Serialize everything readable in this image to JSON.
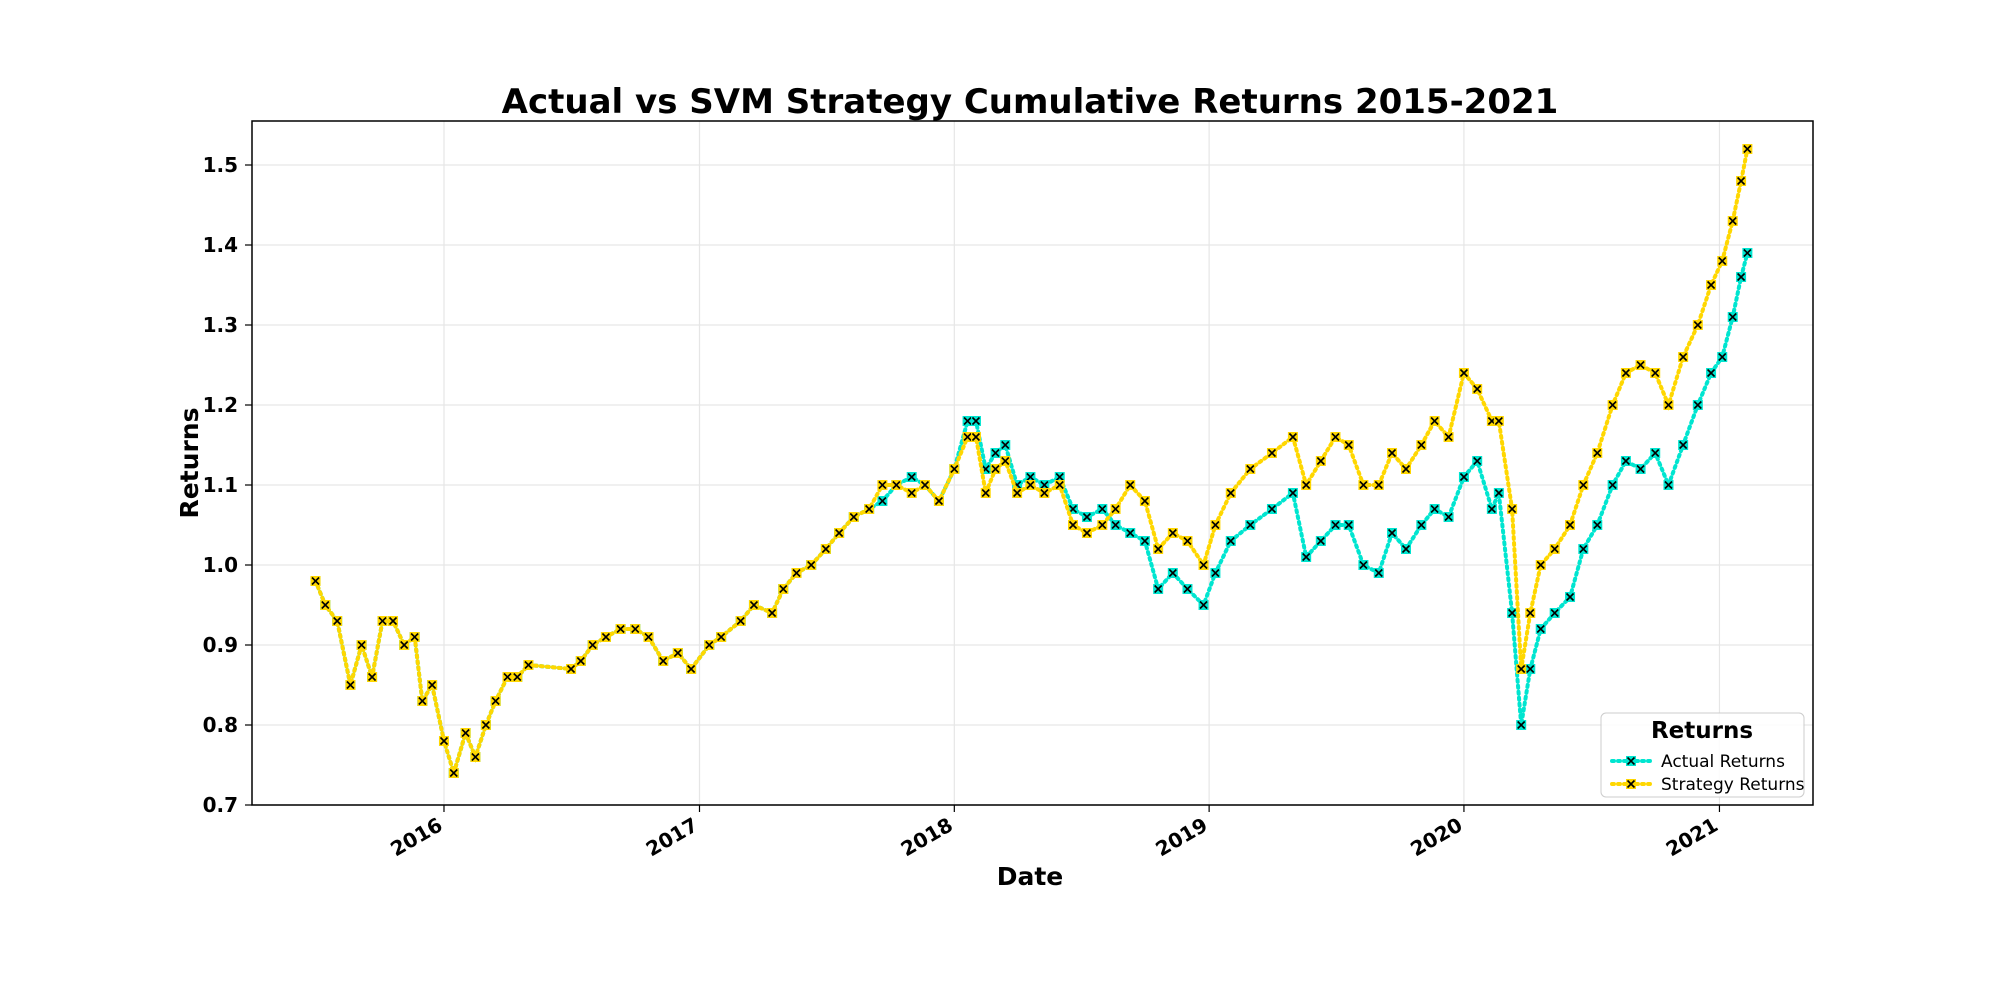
{
  "chart_data": {
    "type": "line",
    "title": "Actual vs SVM Strategy Cumulative Returns 2015-2021",
    "xlabel": "Date",
    "ylabel": "Returns",
    "xlim": [
      "2015-04-01",
      "2021-05-15"
    ],
    "ylim": [
      0.7,
      1.555
    ],
    "x_ticks": [
      "2016",
      "2017",
      "2018",
      "2019",
      "2020",
      "2021"
    ],
    "x_tick_dates": [
      "2016-01-01",
      "2017-01-01",
      "2018-01-01",
      "2019-01-01",
      "2020-01-01",
      "2021-01-01"
    ],
    "y_ticks": [
      "0.7",
      "0.8",
      "0.9",
      "1.0",
      "1.1",
      "1.2",
      "1.3",
      "1.4",
      "1.5"
    ],
    "y_tick_values": [
      0.7,
      0.8,
      0.9,
      1.0,
      1.1,
      1.2,
      1.3,
      1.4,
      1.5
    ],
    "grid": true,
    "legend": {
      "title": "Returns",
      "placement": "lower right",
      "entries": [
        "Actual Returns",
        "Strategy Returns"
      ]
    },
    "series": [
      {
        "name": "Actual Returns",
        "color": "#00e5d0",
        "line_style": "dotted",
        "marker": "x",
        "points": [
          [
            "2015-07-01",
            0.98
          ],
          [
            "2015-07-15",
            0.95
          ],
          [
            "2015-08-01",
            0.93
          ],
          [
            "2015-08-20",
            0.85
          ],
          [
            "2015-09-05",
            0.9
          ],
          [
            "2015-09-20",
            0.86
          ],
          [
            "2015-10-05",
            0.93
          ],
          [
            "2015-10-20",
            0.93
          ],
          [
            "2015-11-05",
            0.9
          ],
          [
            "2015-11-20",
            0.91
          ],
          [
            "2015-12-01",
            0.83
          ],
          [
            "2015-12-15",
            0.85
          ],
          [
            "2016-01-01",
            0.78
          ],
          [
            "2016-01-15",
            0.74
          ],
          [
            "2016-02-01",
            0.79
          ],
          [
            "2016-02-15",
            0.76
          ],
          [
            "2016-03-01",
            0.8
          ],
          [
            "2016-03-15",
            0.83
          ],
          [
            "2016-04-01",
            0.86
          ],
          [
            "2016-04-15",
            0.86
          ],
          [
            "2016-05-01",
            0.875
          ],
          [
            "2016-07-01",
            0.87
          ],
          [
            "2016-07-15",
            0.88
          ],
          [
            "2016-08-01",
            0.9
          ],
          [
            "2016-08-20",
            0.91
          ],
          [
            "2016-09-10",
            0.92
          ],
          [
            "2016-10-01",
            0.92
          ],
          [
            "2016-10-20",
            0.91
          ],
          [
            "2016-11-10",
            0.88
          ],
          [
            "2016-12-01",
            0.89
          ],
          [
            "2016-12-20",
            0.87
          ],
          [
            "2017-01-15",
            0.9
          ],
          [
            "2017-02-01",
            0.91
          ],
          [
            "2017-03-01",
            0.93
          ],
          [
            "2017-03-20",
            0.95
          ],
          [
            "2017-04-15",
            0.94
          ],
          [
            "2017-05-01",
            0.97
          ],
          [
            "2017-05-20",
            0.99
          ],
          [
            "2017-06-10",
            1.0
          ],
          [
            "2017-07-01",
            1.02
          ],
          [
            "2017-07-20",
            1.04
          ],
          [
            "2017-08-10",
            1.06
          ],
          [
            "2017-09-01",
            1.07
          ],
          [
            "2017-09-20",
            1.08
          ],
          [
            "2017-10-10",
            1.1
          ],
          [
            "2017-11-01",
            1.11
          ],
          [
            "2017-11-20",
            1.1
          ],
          [
            "2017-12-10",
            1.08
          ],
          [
            "2018-01-01",
            1.12
          ],
          [
            "2018-01-20",
            1.18
          ],
          [
            "2018-02-01",
            1.18
          ],
          [
            "2018-02-15",
            1.12
          ],
          [
            "2018-03-01",
            1.14
          ],
          [
            "2018-03-15",
            1.15
          ],
          [
            "2018-04-01",
            1.1
          ],
          [
            "2018-04-20",
            1.11
          ],
          [
            "2018-05-10",
            1.1
          ],
          [
            "2018-06-01",
            1.11
          ],
          [
            "2018-06-20",
            1.07
          ],
          [
            "2018-07-10",
            1.06
          ],
          [
            "2018-08-01",
            1.07
          ],
          [
            "2018-08-20",
            1.05
          ],
          [
            "2018-09-10",
            1.04
          ],
          [
            "2018-10-01",
            1.03
          ],
          [
            "2018-10-20",
            0.97
          ],
          [
            "2018-11-10",
            0.99
          ],
          [
            "2018-12-01",
            0.97
          ],
          [
            "2018-12-24",
            0.95
          ],
          [
            "2019-01-10",
            0.99
          ],
          [
            "2019-02-01",
            1.03
          ],
          [
            "2019-03-01",
            1.05
          ],
          [
            "2019-04-01",
            1.07
          ],
          [
            "2019-05-01",
            1.09
          ],
          [
            "2019-05-20",
            1.01
          ],
          [
            "2019-06-10",
            1.03
          ],
          [
            "2019-07-01",
            1.05
          ],
          [
            "2019-07-20",
            1.05
          ],
          [
            "2019-08-10",
            1.0
          ],
          [
            "2019-09-01",
            0.99
          ],
          [
            "2019-09-20",
            1.04
          ],
          [
            "2019-10-10",
            1.02
          ],
          [
            "2019-11-01",
            1.05
          ],
          [
            "2019-11-20",
            1.07
          ],
          [
            "2019-12-10",
            1.06
          ],
          [
            "2020-01-01",
            1.11
          ],
          [
            "2020-01-20",
            1.13
          ],
          [
            "2020-02-10",
            1.07
          ],
          [
            "2020-02-20",
            1.09
          ],
          [
            "2020-03-10",
            0.94
          ],
          [
            "2020-03-23",
            0.8
          ],
          [
            "2020-04-05",
            0.87
          ],
          [
            "2020-04-20",
            0.92
          ],
          [
            "2020-05-10",
            0.94
          ],
          [
            "2020-06-01",
            0.96
          ],
          [
            "2020-06-20",
            1.02
          ],
          [
            "2020-07-10",
            1.05
          ],
          [
            "2020-08-01",
            1.1
          ],
          [
            "2020-08-20",
            1.13
          ],
          [
            "2020-09-10",
            1.12
          ],
          [
            "2020-10-01",
            1.14
          ],
          [
            "2020-10-20",
            1.1
          ],
          [
            "2020-11-10",
            1.15
          ],
          [
            "2020-12-01",
            1.2
          ],
          [
            "2020-12-20",
            1.24
          ],
          [
            "2021-01-05",
            1.26
          ],
          [
            "2021-01-20",
            1.31
          ],
          [
            "2021-02-01",
            1.36
          ],
          [
            "2021-02-10",
            1.39
          ]
        ]
      },
      {
        "name": "Strategy Returns",
        "color": "#ffd700",
        "line_style": "dotted",
        "marker": "x",
        "points": [
          [
            "2015-07-01",
            0.98
          ],
          [
            "2015-07-15",
            0.95
          ],
          [
            "2015-08-01",
            0.93
          ],
          [
            "2015-08-20",
            0.85
          ],
          [
            "2015-09-05",
            0.9
          ],
          [
            "2015-09-20",
            0.86
          ],
          [
            "2015-10-05",
            0.93
          ],
          [
            "2015-10-20",
            0.93
          ],
          [
            "2015-11-05",
            0.9
          ],
          [
            "2015-11-20",
            0.91
          ],
          [
            "2015-12-01",
            0.83
          ],
          [
            "2015-12-15",
            0.85
          ],
          [
            "2016-01-01",
            0.78
          ],
          [
            "2016-01-15",
            0.74
          ],
          [
            "2016-02-01",
            0.79
          ],
          [
            "2016-02-15",
            0.76
          ],
          [
            "2016-03-01",
            0.8
          ],
          [
            "2016-03-15",
            0.83
          ],
          [
            "2016-04-01",
            0.86
          ],
          [
            "2016-04-15",
            0.86
          ],
          [
            "2016-05-01",
            0.875
          ],
          [
            "2016-07-01",
            0.87
          ],
          [
            "2016-07-15",
            0.88
          ],
          [
            "2016-08-01",
            0.9
          ],
          [
            "2016-08-20",
            0.91
          ],
          [
            "2016-09-10",
            0.92
          ],
          [
            "2016-10-01",
            0.92
          ],
          [
            "2016-10-20",
            0.91
          ],
          [
            "2016-11-10",
            0.88
          ],
          [
            "2016-12-01",
            0.89
          ],
          [
            "2016-12-20",
            0.87
          ],
          [
            "2017-01-15",
            0.9
          ],
          [
            "2017-02-01",
            0.91
          ],
          [
            "2017-03-01",
            0.93
          ],
          [
            "2017-03-20",
            0.95
          ],
          [
            "2017-04-15",
            0.94
          ],
          [
            "2017-05-01",
            0.97
          ],
          [
            "2017-05-20",
            0.99
          ],
          [
            "2017-06-10",
            1.0
          ],
          [
            "2017-07-01",
            1.02
          ],
          [
            "2017-07-20",
            1.04
          ],
          [
            "2017-08-10",
            1.06
          ],
          [
            "2017-09-01",
            1.07
          ],
          [
            "2017-09-20",
            1.1
          ],
          [
            "2017-10-10",
            1.1
          ],
          [
            "2017-11-01",
            1.09
          ],
          [
            "2017-11-20",
            1.1
          ],
          [
            "2017-12-10",
            1.08
          ],
          [
            "2018-01-01",
            1.12
          ],
          [
            "2018-01-20",
            1.16
          ],
          [
            "2018-02-01",
            1.16
          ],
          [
            "2018-02-15",
            1.09
          ],
          [
            "2018-03-01",
            1.12
          ],
          [
            "2018-03-15",
            1.13
          ],
          [
            "2018-04-01",
            1.09
          ],
          [
            "2018-04-20",
            1.1
          ],
          [
            "2018-05-10",
            1.09
          ],
          [
            "2018-06-01",
            1.1
          ],
          [
            "2018-06-20",
            1.05
          ],
          [
            "2018-07-10",
            1.04
          ],
          [
            "2018-08-01",
            1.05
          ],
          [
            "2018-08-20",
            1.07
          ],
          [
            "2018-09-10",
            1.1
          ],
          [
            "2018-10-01",
            1.08
          ],
          [
            "2018-10-20",
            1.02
          ],
          [
            "2018-11-10",
            1.04
          ],
          [
            "2018-12-01",
            1.03
          ],
          [
            "2018-12-24",
            1.0
          ],
          [
            "2019-01-10",
            1.05
          ],
          [
            "2019-02-01",
            1.09
          ],
          [
            "2019-03-01",
            1.12
          ],
          [
            "2019-04-01",
            1.14
          ],
          [
            "2019-05-01",
            1.16
          ],
          [
            "2019-05-20",
            1.1
          ],
          [
            "2019-06-10",
            1.13
          ],
          [
            "2019-07-01",
            1.16
          ],
          [
            "2019-07-20",
            1.15
          ],
          [
            "2019-08-10",
            1.1
          ],
          [
            "2019-09-01",
            1.1
          ],
          [
            "2019-09-20",
            1.14
          ],
          [
            "2019-10-10",
            1.12
          ],
          [
            "2019-11-01",
            1.15
          ],
          [
            "2019-11-20",
            1.18
          ],
          [
            "2019-12-10",
            1.16
          ],
          [
            "2020-01-01",
            1.24
          ],
          [
            "2020-01-20",
            1.22
          ],
          [
            "2020-02-10",
            1.18
          ],
          [
            "2020-02-20",
            1.18
          ],
          [
            "2020-03-10",
            1.07
          ],
          [
            "2020-03-23",
            0.87
          ],
          [
            "2020-04-05",
            0.94
          ],
          [
            "2020-04-20",
            1.0
          ],
          [
            "2020-05-10",
            1.02
          ],
          [
            "2020-06-01",
            1.05
          ],
          [
            "2020-06-20",
            1.1
          ],
          [
            "2020-07-10",
            1.14
          ],
          [
            "2020-08-01",
            1.2
          ],
          [
            "2020-08-20",
            1.24
          ],
          [
            "2020-09-10",
            1.25
          ],
          [
            "2020-10-01",
            1.24
          ],
          [
            "2020-10-20",
            1.2
          ],
          [
            "2020-11-10",
            1.26
          ],
          [
            "2020-12-01",
            1.3
          ],
          [
            "2020-12-20",
            1.35
          ],
          [
            "2021-01-05",
            1.38
          ],
          [
            "2021-01-20",
            1.43
          ],
          [
            "2021-02-01",
            1.48
          ],
          [
            "2021-02-10",
            1.52
          ]
        ]
      }
    ]
  }
}
